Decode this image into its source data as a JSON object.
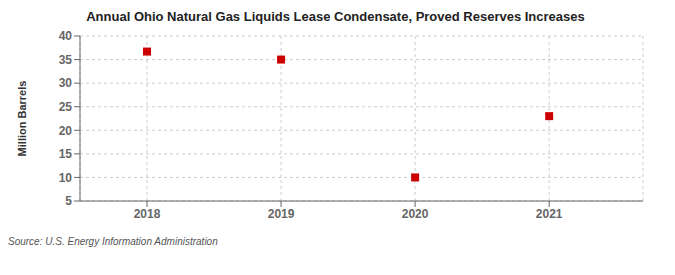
{
  "chart_data": {
    "type": "scatter",
    "title": "Annual Ohio Natural Gas Liquids Lease Condensate, Proved Reserves Increases",
    "ylabel": "Million Barrels",
    "source": "Source: U.S. Energy Information Administration",
    "x": [
      2018,
      2019,
      2020,
      2021
    ],
    "values": [
      36.7,
      35.0,
      10.0,
      23.0
    ],
    "xlim": [
      2017.5,
      2021.7
    ],
    "ylim": [
      5,
      40
    ],
    "xticks": [
      2018,
      2019,
      2020,
      2021
    ],
    "yticks": [
      5,
      10,
      15,
      20,
      25,
      30,
      35,
      40
    ],
    "color": "#cc0000",
    "marker": "square",
    "grid": true
  }
}
